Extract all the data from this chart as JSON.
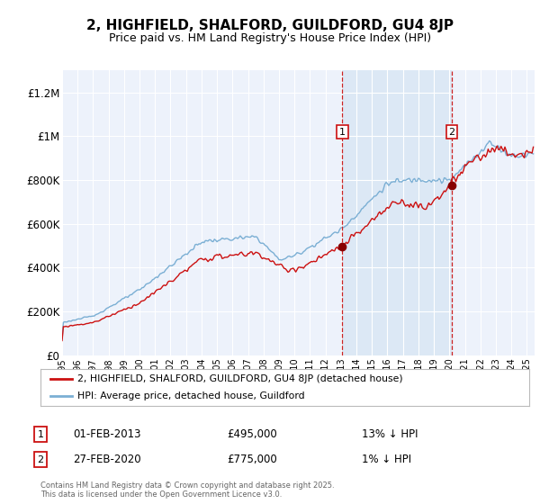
{
  "title": "2, HIGHFIELD, SHALFORD, GUILDFORD, GU4 8JP",
  "subtitle": "Price paid vs. HM Land Registry's House Price Index (HPI)",
  "title_fontsize": 11,
  "subtitle_fontsize": 9,
  "background_color": "#ffffff",
  "plot_bg_color": "#edf2fb",
  "grid_color": "#ffffff",
  "hpi_color": "#7bafd4",
  "price_color": "#cc1111",
  "marker_color": "#880000",
  "vline_color": "#cc2222",
  "shade_color": "#dce8f5",
  "ylim": [
    0,
    1300000
  ],
  "yticks": [
    0,
    200000,
    400000,
    600000,
    800000,
    1000000,
    1200000
  ],
  "ytick_labels": [
    "£0",
    "£200K",
    "£400K",
    "£600K",
    "£800K",
    "£1M",
    "£1.2M"
  ],
  "sale1_year": 2013.083,
  "sale1_price": 495000,
  "sale1_date": "01-FEB-2013",
  "sale1_hpi_pct": "13% ↓ HPI",
  "sale2_year": 2020.16,
  "sale2_price": 775000,
  "sale2_date": "27-FEB-2020",
  "sale2_hpi_pct": "1% ↓ HPI",
  "legend_label1": "2, HIGHFIELD, SHALFORD, GUILDFORD, GU4 8JP (detached house)",
  "legend_label2": "HPI: Average price, detached house, Guildford",
  "footnote": "Contains HM Land Registry data © Crown copyright and database right 2025.\nThis data is licensed under the Open Government Licence v3.0.",
  "xmin": 1995.0,
  "xmax": 2025.5
}
